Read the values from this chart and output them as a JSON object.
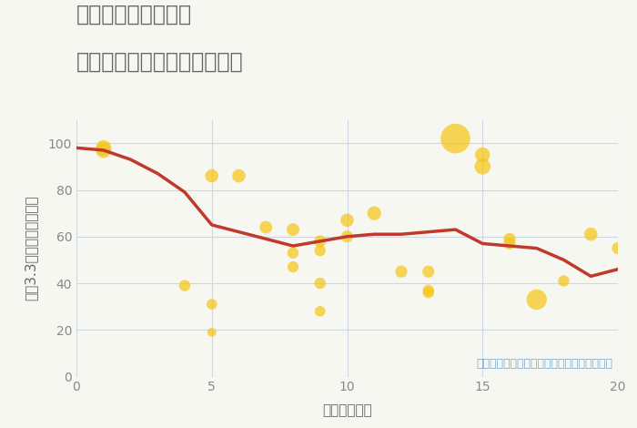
{
  "title_line1": "岐阜県瑞穂市七崎の",
  "title_line2": "駅距離別中古マンション価格",
  "xlabel": "駅距離（分）",
  "ylabel": "坪（3.3㎡）単価（万円）",
  "annotation": "円の大きさは、取引のあった物件面積を示す",
  "background_color": "#f7f7f2",
  "plot_bg_color": "#f7f7f2",
  "xlim": [
    0,
    20
  ],
  "ylim": [
    0,
    110
  ],
  "xticks": [
    0,
    5,
    10,
    15,
    20
  ],
  "yticks": [
    0,
    20,
    40,
    60,
    80,
    100
  ],
  "scatter_x": [
    1,
    1,
    4,
    5,
    5,
    5,
    6,
    7,
    8,
    8,
    8,
    9,
    9,
    9,
    9,
    10,
    10,
    11,
    12,
    13,
    13,
    13,
    14,
    15,
    15,
    16,
    16,
    17,
    18,
    19,
    20
  ],
  "scatter_y": [
    97,
    98,
    39,
    19,
    31,
    86,
    86,
    64,
    47,
    53,
    63,
    28,
    40,
    54,
    58,
    60,
    67,
    70,
    45,
    36,
    37,
    45,
    102,
    90,
    95,
    57,
    59,
    33,
    41,
    61,
    55
  ],
  "scatter_sizes": [
    150,
    150,
    80,
    50,
    70,
    110,
    110,
    100,
    80,
    80,
    100,
    70,
    80,
    80,
    90,
    90,
    110,
    120,
    90,
    80,
    80,
    90,
    550,
    160,
    140,
    90,
    90,
    260,
    80,
    110,
    90
  ],
  "scatter_color": "#f5c518",
  "scatter_alpha": 0.72,
  "line_x": [
    0,
    1,
    2,
    3,
    4,
    5,
    6,
    7,
    8,
    9,
    10,
    11,
    12,
    13,
    14,
    15,
    16,
    17,
    18,
    19,
    20
  ],
  "line_y": [
    98,
    97,
    93,
    87,
    79,
    65,
    62,
    59,
    56,
    58,
    60,
    61,
    61,
    62,
    63,
    57,
    56,
    55,
    50,
    43,
    46
  ],
  "line_color": "#c0392b",
  "line_width": 2.5,
  "title_color": "#666666",
  "axis_label_color": "#666666",
  "tick_color": "#888888",
  "annotation_color": "#7fa8c9",
  "grid_color": "#cdd8e3",
  "title_fontsize": 17,
  "label_fontsize": 11,
  "tick_fontsize": 10,
  "annotation_fontsize": 9
}
